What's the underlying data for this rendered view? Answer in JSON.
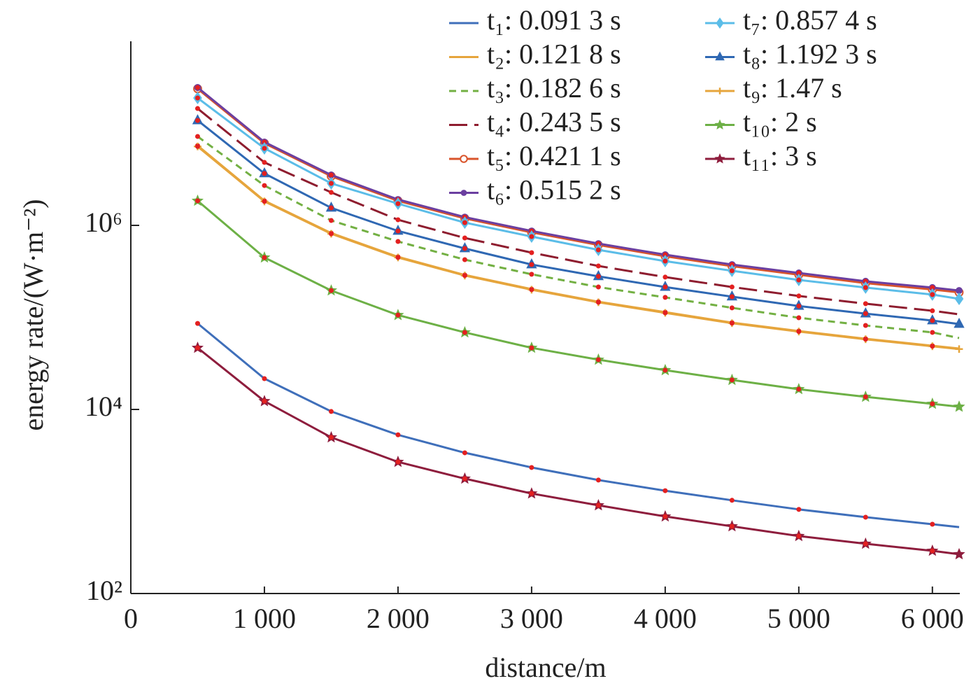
{
  "chart_data": {
    "type": "line",
    "xlabel": "distance/m",
    "ylabel": "energy rate/(W·m⁻²)",
    "log_y": true,
    "xlim": [
      0,
      6200
    ],
    "xticks": [
      0,
      {
        "value": 1000,
        "label": "1 000"
      },
      {
        "value": 2000,
        "label": "2 000"
      },
      {
        "value": 3000,
        "label": "3 000"
      },
      {
        "value": 4000,
        "label": "4 000"
      },
      {
        "value": 5000,
        "label": "5 000"
      },
      {
        "value": 6000,
        "label": "6 000"
      }
    ],
    "ylim": [
      100,
      100000000
    ],
    "yticks": [
      {
        "value": 100,
        "label": "10²"
      },
      {
        "value": 10000,
        "label": "10⁴"
      },
      {
        "value": 1000000,
        "label": "10⁶"
      }
    ],
    "legend": "top-right",
    "x": [
      500,
      1000,
      1500,
      2000,
      2500,
      3000,
      3500,
      4000,
      4500,
      5000,
      5500,
      6000,
      6200
    ],
    "series": [
      {
        "name": "t₁: 0.091 3 s",
        "color": "#3f6fba",
        "dash": "solid",
        "marker": "none",
        "values": [
          86000,
          21600,
          9500,
          5300,
          3380,
          2340,
          1710,
          1310,
          1030,
          820,
          675,
          566,
          527
        ]
      },
      {
        "name": "t₂: 0.121 8 s",
        "color": "#e6a53c",
        "dash": "solid",
        "marker": "none",
        "values": [
          7360000,
          1850000,
          824000,
          455000,
          289000,
          203000,
          148000,
          114000,
          87700,
          71100,
          58600,
          49200,
          45900
        ]
      },
      {
        "name": "t₃: 0.182 6 s",
        "color": "#73b043",
        "dash": "dashed",
        "marker": "none",
        "values": [
          9250000,
          2710000,
          1130000,
          668000,
          424000,
          294000,
          214000,
          165000,
          127000,
          99100,
          81800,
          68700,
          59700
        ]
      },
      {
        "name": "t₄: 0.243 5 s",
        "color": "#8e1d2f",
        "dash": "longdash",
        "marker": "none",
        "values": [
          18600000,
          4830000,
          2280000,
          1150000,
          730000,
          505000,
          362000,
          274000,
          214000,
          171000,
          141000,
          118000,
          108000
        ]
      },
      {
        "name": "t₅: 0.421 1 s",
        "color": "#d9542b",
        "dash": "solid",
        "marker": "circle",
        "values": [
          30500000,
          7800000,
          3420000,
          1850000,
          1190000,
          840000,
          612000,
          462000,
          360000,
          291000,
          236000,
          201000,
          187000
        ]
      },
      {
        "name": "t₆: 0.515 2 s",
        "color": "#6b3fa0",
        "dash": "solid",
        "marker": "dot",
        "values": [
          31500000,
          8040000,
          3530000,
          1910000,
          1230000,
          869000,
          634000,
          480000,
          375000,
          304000,
          247000,
          211000,
          196000
        ]
      },
      {
        "name": "t₇: 0.857 4 s",
        "color": "#5bbde8",
        "dash": "solid",
        "marker": "diamond",
        "values": [
          24200000,
          6870000,
          2860000,
          1720000,
          1070000,
          755000,
          542000,
          409000,
          321000,
          255000,
          211000,
          177000,
          159000
        ]
      },
      {
        "name": "t₈: 1.192 3 s",
        "color": "#2f68b3",
        "dash": "solid",
        "marker": "triangle",
        "values": [
          13800000,
          3660000,
          1550000,
          869000,
          561000,
          375000,
          279000,
          214000,
          168000,
          133000,
          110000,
          92400,
          84700
        ]
      },
      {
        "name": "t₉: 1.47 s",
        "color": "#e6a53c",
        "dash": "solid",
        "marker": "plus",
        "values": [
          7200000,
          1820000,
          810000,
          448000,
          285000,
          200000,
          146000,
          112000,
          86500,
          70200,
          57900,
          48600,
          45300
        ]
      },
      {
        "name": "t₁₀: 2 s",
        "color": "#6db046",
        "dash": "solid",
        "marker": "star",
        "values": [
          1850000,
          447000,
          196000,
          106000,
          68700,
          46700,
          34700,
          26700,
          20900,
          16600,
          13700,
          11500,
          10700
        ]
      },
      {
        "name": "t₁₁: 3 s",
        "color": "#8e1d3d",
        "dash": "solid",
        "marker": "star",
        "values": [
          46700,
          12300,
          4970,
          2690,
          1770,
          1220,
          908,
          687,
          537,
          421,
          347,
          291,
          267
        ]
      }
    ]
  }
}
